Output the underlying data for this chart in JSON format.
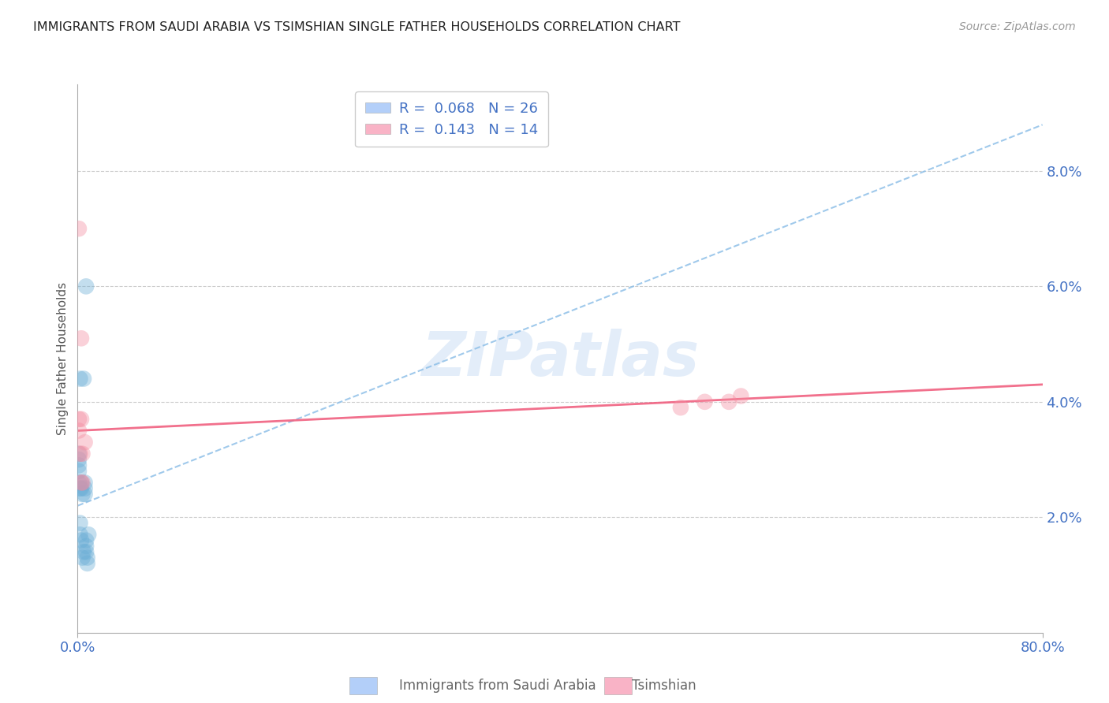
{
  "title": "IMMIGRANTS FROM SAUDI ARABIA VS TSIMSHIAN SINGLE FATHER HOUSEHOLDS CORRELATION CHART",
  "source": "Source: ZipAtlas.com",
  "ylabel": "Single Father Households",
  "y_tick_values": [
    0.02,
    0.04,
    0.06,
    0.08
  ],
  "xlim": [
    0.0,
    0.8
  ],
  "ylim": [
    0.0,
    0.095
  ],
  "watermark": "ZIPatlas",
  "legend_entries": [
    {
      "label": "R =  0.068   N = 26",
      "color": "#a0c4f8"
    },
    {
      "label": "R =  0.143   N = 14",
      "color": "#f8a0b8"
    }
  ],
  "blue_scatter_x": [
    0.001,
    0.001,
    0.001,
    0.001,
    0.001,
    0.002,
    0.002,
    0.002,
    0.002,
    0.003,
    0.003,
    0.003,
    0.004,
    0.004,
    0.005,
    0.005,
    0.006,
    0.006,
    0.006,
    0.007,
    0.007,
    0.007,
    0.007,
    0.008,
    0.008,
    0.009
  ],
  "blue_scatter_y": [
    0.026,
    0.028,
    0.029,
    0.03,
    0.031,
    0.017,
    0.019,
    0.025,
    0.044,
    0.016,
    0.025,
    0.026,
    0.013,
    0.024,
    0.014,
    0.044,
    0.024,
    0.025,
    0.026,
    0.014,
    0.015,
    0.016,
    0.06,
    0.012,
    0.013,
    0.017
  ],
  "pink_scatter_x": [
    0.001,
    0.001,
    0.002,
    0.003,
    0.003,
    0.004,
    0.004,
    0.006,
    0.001,
    0.5,
    0.52,
    0.54,
    0.55,
    0.003
  ],
  "pink_scatter_y": [
    0.037,
    0.035,
    0.031,
    0.026,
    0.037,
    0.026,
    0.031,
    0.033,
    0.07,
    0.039,
    0.04,
    0.04,
    0.041,
    0.051
  ],
  "blue_line_x0": 0.0,
  "blue_line_x1": 0.8,
  "blue_line_y0": 0.022,
  "blue_line_y1": 0.088,
  "pink_line_x0": 0.0,
  "pink_line_x1": 0.8,
  "pink_line_y0": 0.035,
  "pink_line_y1": 0.043,
  "blue_color": "#6baed6",
  "pink_color": "#f48ca0",
  "blue_line_color": "#8fc0e8",
  "pink_line_color": "#f06080",
  "grid_color": "#cccccc",
  "background_color": "#ffffff",
  "title_color": "#222222",
  "tick_label_color": "#4472c4"
}
